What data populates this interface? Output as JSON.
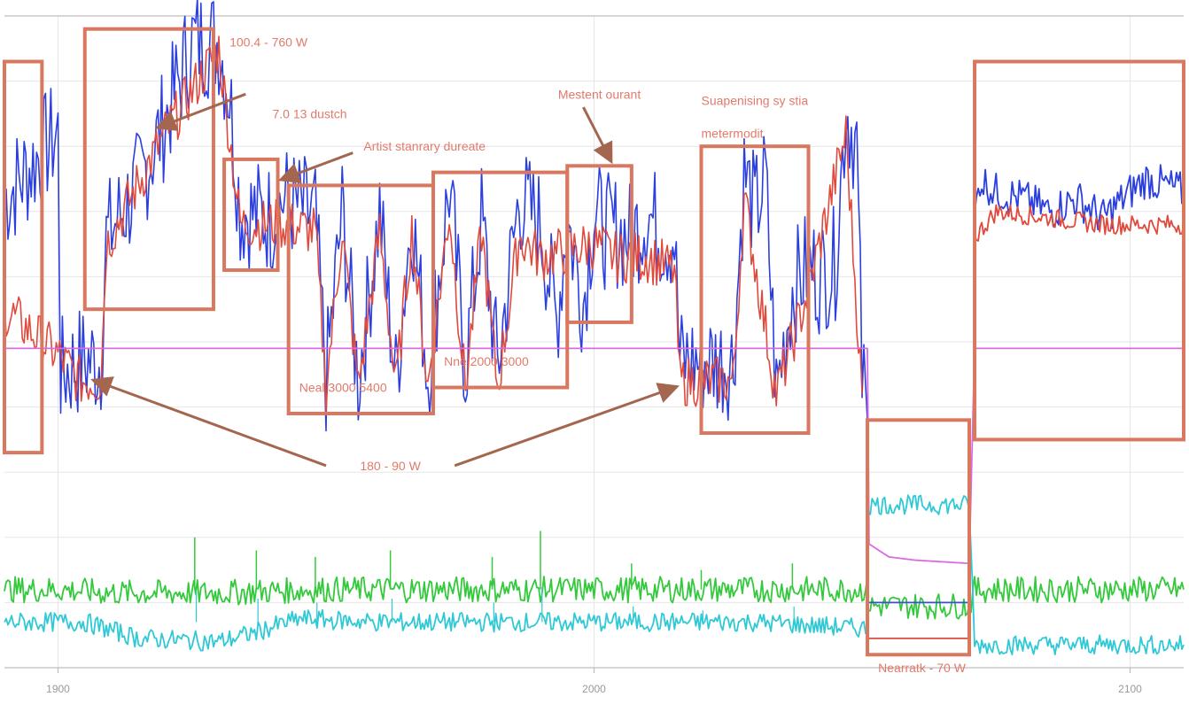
{
  "chart_data": {
    "type": "line",
    "title": "",
    "xlabel": "",
    "ylabel": "",
    "xlim": [
      1890,
      2110
    ],
    "ylim": [
      0,
      1
    ],
    "grid": true,
    "x_ticks": [
      {
        "value": 1900,
        "label": "1900"
      },
      {
        "value": 2000,
        "label": "2000"
      },
      {
        "value": 2100,
        "label": "2100"
      }
    ],
    "colors": {
      "blue": "#2b3fe0",
      "red": "#e04a3c",
      "magenta": "#d96be0",
      "green": "#34c93c",
      "cyan": "#2fc9d6",
      "annotation": "#d9775f",
      "annotation_text": "#e27a6c",
      "arrow": "#a4664f"
    },
    "series": [
      {
        "key": "blue",
        "color": "#2b3fe0",
        "noise": 0.09,
        "segments": [
          [
            1890,
            0.72
          ],
          [
            1900,
            0.82
          ],
          [
            1900.5,
            0.45
          ],
          [
            1904,
            0.47
          ],
          [
            1908,
            0.47
          ],
          [
            1909,
            0.66
          ],
          [
            1915,
            0.74
          ],
          [
            1920,
            0.84
          ],
          [
            1925,
            0.96
          ],
          [
            1930,
            0.96
          ],
          [
            1932,
            0.88
          ],
          [
            1934,
            0.7
          ],
          [
            1940,
            0.69
          ],
          [
            1942,
            0.72
          ],
          [
            1948,
            0.69
          ],
          [
            1950,
            0.44
          ],
          [
            1953,
            0.7
          ],
          [
            1956,
            0.44
          ],
          [
            1960,
            0.7
          ],
          [
            1963,
            0.44
          ],
          [
            1966,
            0.7
          ],
          [
            1969,
            0.45
          ],
          [
            1973,
            0.74
          ],
          [
            1976,
            0.46
          ],
          [
            1979,
            0.69
          ],
          [
            1982,
            0.46
          ],
          [
            1986,
            0.72
          ],
          [
            1990,
            0.68
          ],
          [
            1993,
            0.53
          ],
          [
            1995,
            0.69
          ],
          [
            1998,
            0.56
          ],
          [
            2000,
            0.7
          ],
          [
            2002,
            0.67
          ],
          [
            2004,
            0.67
          ],
          [
            2007,
            0.66
          ],
          [
            2010,
            0.7
          ],
          [
            2012,
            0.67
          ],
          [
            2015,
            0.66
          ],
          [
            2016,
            0.47
          ],
          [
            2020,
            0.47
          ],
          [
            2026,
            0.47
          ],
          [
            2028,
            0.76
          ],
          [
            2030,
            0.7
          ],
          [
            2032,
            0.75
          ],
          [
            2034,
            0.42
          ],
          [
            2037,
            0.58
          ],
          [
            2040,
            0.62
          ],
          [
            2042,
            0.6
          ],
          [
            2045,
            0.62
          ],
          [
            2047,
            0.86
          ],
          [
            2049,
            0.8
          ],
          [
            2050,
            0.45
          ],
          [
            2051,
            0.38
          ]
        ]
      },
      {
        "key": "red",
        "color": "#e04a3c",
        "noise": 0.04,
        "segments": [
          [
            1890,
            0.55
          ],
          [
            1900,
            0.48
          ],
          [
            1904,
            0.44
          ],
          [
            1908,
            0.44
          ],
          [
            1909,
            0.65
          ],
          [
            1920,
            0.82
          ],
          [
            1930,
            0.95
          ],
          [
            1934,
            0.68
          ],
          [
            1942,
            0.68
          ],
          [
            1948,
            0.67
          ],
          [
            1950,
            0.43
          ],
          [
            1953,
            0.67
          ],
          [
            1956,
            0.43
          ],
          [
            1960,
            0.67
          ],
          [
            1963,
            0.43
          ],
          [
            1966,
            0.67
          ],
          [
            1969,
            0.43
          ],
          [
            1973,
            0.7
          ],
          [
            1976,
            0.43
          ],
          [
            1979,
            0.67
          ],
          [
            1982,
            0.43
          ],
          [
            1986,
            0.66
          ],
          [
            1990,
            0.63
          ],
          [
            1995,
            0.64
          ],
          [
            2000,
            0.65
          ],
          [
            2004,
            0.63
          ],
          [
            2010,
            0.63
          ],
          [
            2015,
            0.61
          ],
          [
            2016,
            0.44
          ],
          [
            2026,
            0.44
          ],
          [
            2028,
            0.72
          ],
          [
            2034,
            0.42
          ],
          [
            2040,
            0.58
          ],
          [
            2047,
            0.82
          ],
          [
            2050,
            0.42
          ]
        ]
      },
      {
        "key": "blue_late",
        "color": "#2b3fe0",
        "noise": 0.03,
        "segments": [
          [
            2071,
            0.69
          ],
          [
            2072,
            0.75
          ],
          [
            2075,
            0.73
          ],
          [
            2080,
            0.72
          ],
          [
            2085,
            0.7
          ],
          [
            2090,
            0.72
          ],
          [
            2095,
            0.69
          ],
          [
            2100,
            0.73
          ],
          [
            2103,
            0.75
          ],
          [
            2110,
            0.73
          ]
        ]
      },
      {
        "key": "red_late",
        "color": "#e04a3c",
        "noise": 0.015,
        "segments": [
          [
            2071,
            0.66
          ],
          [
            2075,
            0.7
          ],
          [
            2085,
            0.69
          ],
          [
            2095,
            0.68
          ],
          [
            2110,
            0.68
          ]
        ]
      },
      {
        "key": "magenta",
        "color": "#d96be0",
        "noise": 0.0,
        "segments": [
          [
            1890,
            0.49
          ],
          [
            2051,
            0.49
          ],
          [
            2051.3,
            0.19
          ],
          [
            2055,
            0.17
          ],
          [
            2060,
            0.165
          ],
          [
            2070,
            0.16
          ],
          [
            2071,
            0.49
          ],
          [
            2110,
            0.49
          ]
        ]
      },
      {
        "key": "green",
        "color": "#34c93c",
        "noise": 0.02,
        "segments": [
          [
            1890,
            0.12
          ],
          [
            1900,
            0.12
          ],
          [
            1910,
            0.115
          ],
          [
            1930,
            0.115
          ],
          [
            1950,
            0.12
          ],
          [
            1970,
            0.12
          ],
          [
            1990,
            0.12
          ],
          [
            2010,
            0.12
          ],
          [
            2030,
            0.12
          ],
          [
            2051,
            0.12
          ],
          [
            2051.2,
            0.095
          ],
          [
            2070,
            0.095
          ],
          [
            2071,
            0.12
          ],
          [
            2110,
            0.12
          ]
        ]
      },
      {
        "key": "cyan",
        "color": "#2fc9d6",
        "noise": 0.015,
        "segments": [
          [
            1890,
            0.07
          ],
          [
            1905,
            0.07
          ],
          [
            1915,
            0.045
          ],
          [
            1930,
            0.04
          ],
          [
            1935,
            0.05
          ],
          [
            1945,
            0.075
          ],
          [
            1960,
            0.07
          ],
          [
            1980,
            0.07
          ],
          [
            1990,
            0.07
          ],
          [
            1995,
            0.07
          ],
          [
            2000,
            0.07
          ],
          [
            2010,
            0.07
          ],
          [
            2030,
            0.07
          ],
          [
            2051,
            0.06
          ],
          [
            2051.2,
            0.25
          ],
          [
            2070,
            0.25
          ],
          [
            2071,
            0.035
          ],
          [
            2110,
            0.035
          ]
        ]
      },
      {
        "key": "navy_mid",
        "color": "#3a4fd8",
        "noise": 0.0,
        "segments": [
          [
            2051,
            0.1
          ],
          [
            2070,
            0.1
          ]
        ]
      },
      {
        "key": "red_low",
        "color": "#e04a3c",
        "noise": 0.0,
        "segments": [
          [
            2051,
            0.045
          ],
          [
            2070,
            0.045
          ]
        ]
      }
    ],
    "spikes": [
      {
        "x": 1925.5,
        "height": 0.08
      },
      {
        "x": 1937,
        "height": 0.06
      },
      {
        "x": 1948,
        "height": 0.05
      },
      {
        "x": 1962,
        "height": 0.06
      },
      {
        "x": 1981,
        "height": 0.05
      },
      {
        "x": 1990,
        "height": 0.09
      },
      {
        "x": 2007,
        "height": 0.04
      },
      {
        "x": 2020,
        "height": 0.03
      },
      {
        "x": 2037,
        "height": 0.04
      }
    ],
    "annotation_boxes": [
      {
        "x0": 1890,
        "x1": 1897,
        "y0": 0.33,
        "y1": 0.93
      },
      {
        "x0": 1905,
        "x1": 1929,
        "y0": 0.55,
        "y1": 0.98
      },
      {
        "x0": 1931,
        "x1": 1941,
        "y0": 0.61,
        "y1": 0.78
      },
      {
        "x0": 1943,
        "x1": 1970,
        "y0": 0.39,
        "y1": 0.74
      },
      {
        "x0": 1970,
        "x1": 1995,
        "y0": 0.43,
        "y1": 0.76
      },
      {
        "x0": 1995,
        "x1": 2007,
        "y0": 0.53,
        "y1": 0.77
      },
      {
        "x0": 2020,
        "x1": 2040,
        "y0": 0.36,
        "y1": 0.8
      },
      {
        "x0": 2051,
        "x1": 2070,
        "y0": 0.02,
        "y1": 0.38
      },
      {
        "x0": 2071,
        "x1": 2110,
        "y0": 0.35,
        "y1": 0.93
      }
    ],
    "annotations": [
      {
        "text": "100.4 - 760 W",
        "x": 1932,
        "y": 0.96,
        "anchor": "start"
      },
      {
        "text": "7.0 13 dustch",
        "x": 1940,
        "y": 0.85,
        "anchor": "start"
      },
      {
        "text": "Artist stanrary dureate",
        "x": 1957,
        "y": 0.8,
        "anchor": "start"
      },
      {
        "text": "Mestent ourant",
        "x": 2001,
        "y": 0.88,
        "anchor": "middle"
      },
      {
        "text": "Suapenising sy stia",
        "x": 2020,
        "y": 0.87,
        "anchor": "start"
      },
      {
        "text": "metermodit",
        "x": 2020,
        "y": 0.82,
        "anchor": "start"
      },
      {
        "text": "Neal 3000 5400",
        "x": 1945,
        "y": 0.43,
        "anchor": "start"
      },
      {
        "text": "Nne 2000 3000",
        "x": 1972,
        "y": 0.47,
        "anchor": "start"
      },
      {
        "text": "180 - 90 W",
        "x": 1962,
        "y": 0.31,
        "anchor": "middle"
      },
      {
        "text": "Nearratk - 70 W",
        "x": 2053,
        "y": 0.0,
        "anchor": "start"
      }
    ],
    "arrows": [
      {
        "from": [
          1935,
          0.88
        ],
        "to": [
          1919,
          0.83
        ]
      },
      {
        "from": [
          1955,
          0.79
        ],
        "to": [
          1942,
          0.75
        ]
      },
      {
        "from": [
          1998,
          0.86
        ],
        "to": [
          2003,
          0.78
        ]
      },
      {
        "from": [
          1950,
          0.31
        ],
        "to": [
          1907,
          0.44
        ]
      },
      {
        "from": [
          1974,
          0.31
        ],
        "to": [
          2015,
          0.43
        ]
      }
    ]
  }
}
